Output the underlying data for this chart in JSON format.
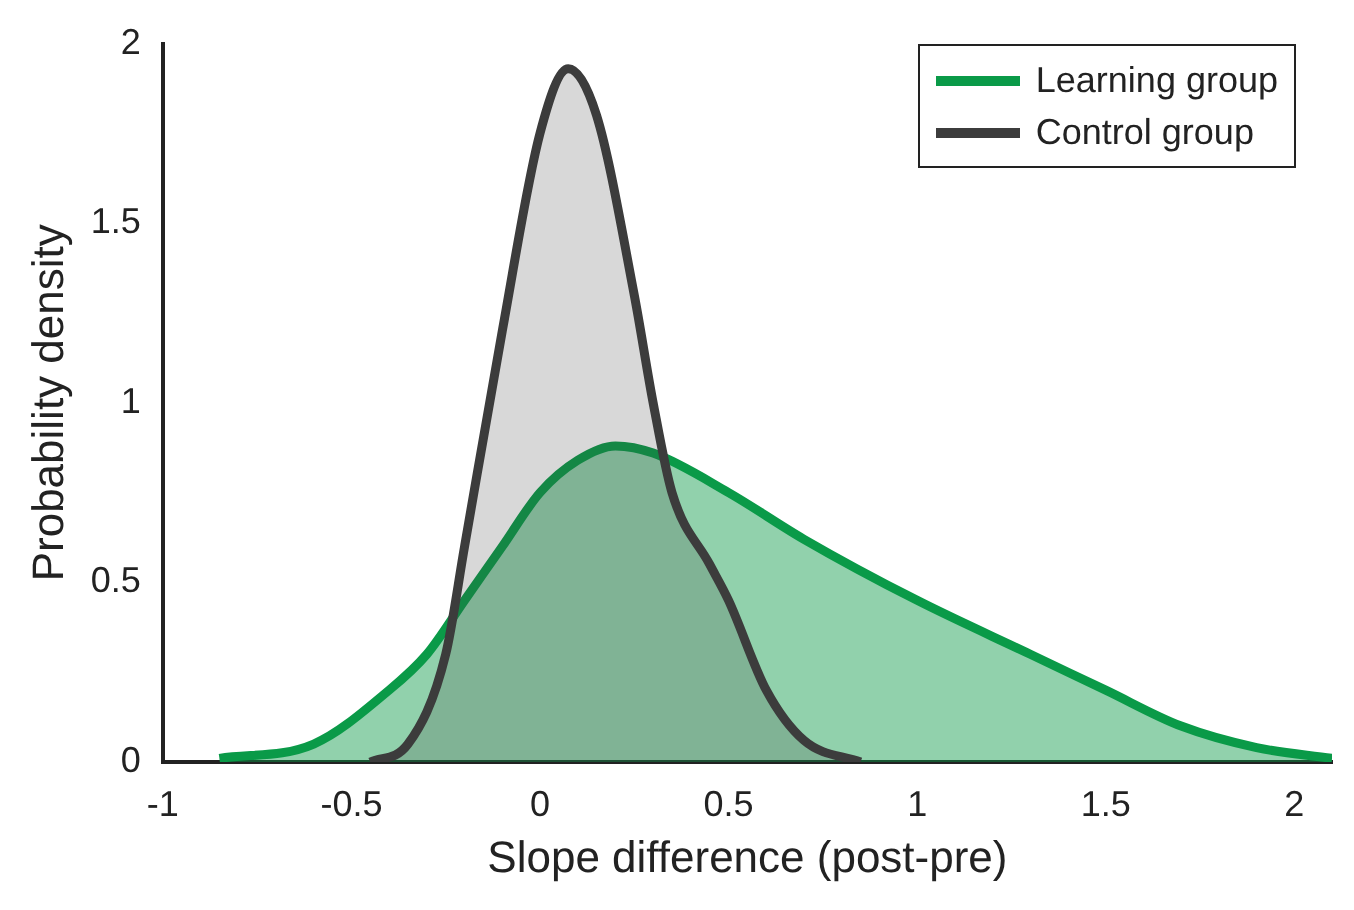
{
  "chart_data": {
    "type": "area",
    "xlabel": "Slope difference (post-pre)",
    "ylabel": "Probability density",
    "xlim": [
      -1,
      2.1
    ],
    "ylim": [
      0,
      2
    ],
    "xticks": [
      -1,
      -0.5,
      0,
      0.5,
      1,
      1.5,
      2
    ],
    "yticks": [
      0,
      0.5,
      1,
      1.5,
      2
    ],
    "grid": false,
    "legend": "top right",
    "series": [
      {
        "name": "Learning group",
        "color": "#0a9a48",
        "x": [
          -0.85,
          -0.6,
          -0.4,
          -0.3,
          -0.2,
          -0.1,
          0,
          0.1,
          0.2,
          0.3,
          0.5,
          0.7,
          1,
          1.3,
          1.5,
          1.7,
          1.9,
          2.1
        ],
        "values": [
          0.01,
          0.05,
          0.2,
          0.3,
          0.45,
          0.6,
          0.75,
          0.84,
          0.88,
          0.86,
          0.75,
          0.62,
          0.45,
          0.3,
          0.2,
          0.1,
          0.04,
          0.01
        ]
      },
      {
        "name": "Control group",
        "color": "#3c3c3c",
        "x": [
          -0.45,
          -0.35,
          -0.25,
          -0.2,
          -0.1,
          0,
          0.075,
          0.15,
          0.25,
          0.3,
          0.35,
          0.45,
          0.5,
          0.6,
          0.7,
          0.85
        ],
        "values": [
          0,
          0.05,
          0.3,
          0.6,
          1.2,
          1.75,
          1.93,
          1.8,
          1.3,
          1,
          0.75,
          0.55,
          0.45,
          0.2,
          0.06,
          0
        ]
      }
    ]
  }
}
